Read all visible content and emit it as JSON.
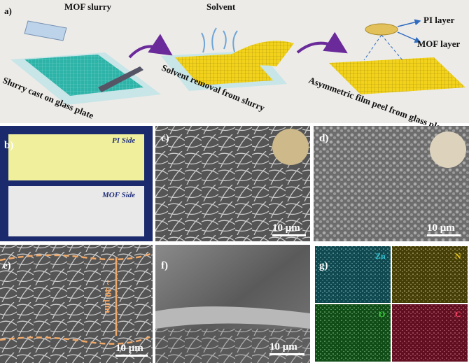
{
  "panels": [
    {
      "label": "a)",
      "texts": [
        "MOF slurry",
        "Solvent",
        "PI layer",
        "MOF layer",
        "Slurry cast on  glass plate",
        "Solvent removal from slurry",
        "Asymmetric film peel from glass plate"
      ]
    },
    {
      "label": "b)",
      "texts": [
        "PI Side",
        "MOF Side"
      ]
    },
    {
      "label": "c)",
      "texts": [
        "10 μm"
      ]
    },
    {
      "label": "d)",
      "texts": [
        "10 μm"
      ]
    },
    {
      "label": "e)",
      "texts": [
        "~ 40 μm",
        "10 μm"
      ]
    },
    {
      "label": "f)",
      "texts": [
        "10 μm"
      ]
    },
    {
      "label": "g)",
      "texts": [
        "Zn",
        "N",
        "O",
        "C"
      ]
    }
  ]
}
